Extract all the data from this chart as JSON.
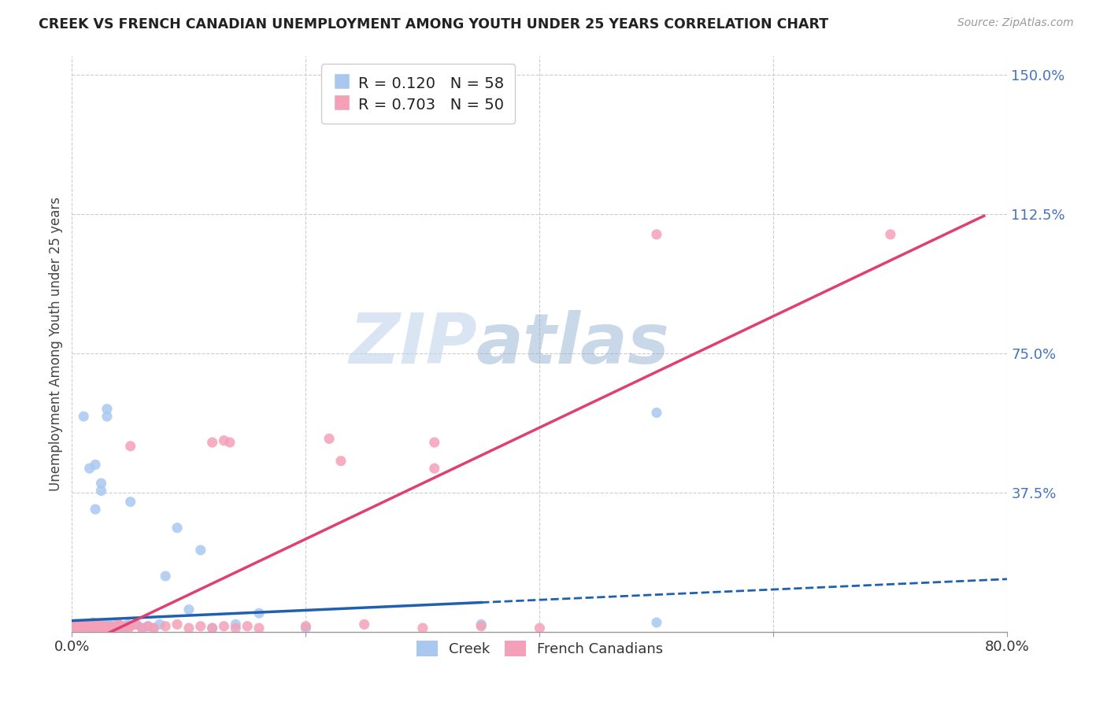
{
  "title": "CREEK VS FRENCH CANADIAN UNEMPLOYMENT AMONG YOUTH UNDER 25 YEARS CORRELATION CHART",
  "source": "Source: ZipAtlas.com",
  "ylabel": "Unemployment Among Youth under 25 years",
  "xlim": [
    0.0,
    0.8
  ],
  "ylim": [
    0.0,
    1.55
  ],
  "creek_color": "#a8c8f0",
  "french_color": "#f4a0b8",
  "creek_line_color": "#2060b0",
  "french_line_color": "#e04070",
  "creek_R": 0.12,
  "creek_N": 58,
  "french_R": 0.703,
  "french_N": 50,
  "ytick_color": "#4472c4",
  "yticks": [
    0.0,
    0.375,
    0.75,
    1.125,
    1.5
  ],
  "yticklabels": [
    "",
    "37.5%",
    "75.0%",
    "112.5%",
    "150.0%"
  ],
  "creek_scatter_x": [
    0.002,
    0.004,
    0.005,
    0.006,
    0.007,
    0.008,
    0.009,
    0.01,
    0.01,
    0.01,
    0.012,
    0.012,
    0.013,
    0.014,
    0.015,
    0.015,
    0.016,
    0.017,
    0.018,
    0.018,
    0.02,
    0.02,
    0.021,
    0.022,
    0.023,
    0.024,
    0.025,
    0.026,
    0.027,
    0.028,
    0.03,
    0.031,
    0.032,
    0.033,
    0.035,
    0.036,
    0.038,
    0.04,
    0.04,
    0.042,
    0.045,
    0.048,
    0.05,
    0.055,
    0.06,
    0.065,
    0.07,
    0.075,
    0.08,
    0.09,
    0.1,
    0.11,
    0.12,
    0.14,
    0.16,
    0.2,
    0.35,
    0.5
  ],
  "creek_scatter_y": [
    0.01,
    0.02,
    0.01,
    0.015,
    0.01,
    0.015,
    0.01,
    0.02,
    0.01,
    0.015,
    0.01,
    0.02,
    0.01,
    0.015,
    0.01,
    0.015,
    0.01,
    0.02,
    0.01,
    0.025,
    0.01,
    0.02,
    0.01,
    0.015,
    0.01,
    0.02,
    0.015,
    0.01,
    0.015,
    0.02,
    0.01,
    0.02,
    0.01,
    0.015,
    0.01,
    0.02,
    0.01,
    0.02,
    0.01,
    0.015,
    0.01,
    0.02,
    0.015,
    0.02,
    0.01,
    0.015,
    0.01,
    0.02,
    0.15,
    0.28,
    0.06,
    0.22,
    0.01,
    0.02,
    0.05,
    0.01,
    0.02,
    0.025
  ],
  "creek_outlier_x": [
    0.01,
    0.015,
    0.02,
    0.02,
    0.025,
    0.025,
    0.03,
    0.03,
    0.05,
    0.5
  ],
  "creek_outlier_y": [
    0.58,
    0.44,
    0.33,
    0.45,
    0.38,
    0.4,
    0.58,
    0.6,
    0.35,
    0.59
  ],
  "french_scatter_x": [
    0.002,
    0.004,
    0.005,
    0.006,
    0.007,
    0.008,
    0.009,
    0.01,
    0.01,
    0.012,
    0.013,
    0.014,
    0.015,
    0.016,
    0.017,
    0.018,
    0.02,
    0.021,
    0.022,
    0.023,
    0.025,
    0.027,
    0.03,
    0.032,
    0.035,
    0.038,
    0.04,
    0.042,
    0.045,
    0.048,
    0.05,
    0.055,
    0.06,
    0.065,
    0.07,
    0.08,
    0.09,
    0.1,
    0.11,
    0.12,
    0.13,
    0.14,
    0.15,
    0.16,
    0.2,
    0.25,
    0.3,
    0.35,
    0.4,
    0.7
  ],
  "french_scatter_y": [
    0.01,
    0.02,
    0.01,
    0.015,
    0.01,
    0.015,
    0.02,
    0.01,
    0.015,
    0.01,
    0.015,
    0.01,
    0.02,
    0.01,
    0.015,
    0.01,
    0.015,
    0.02,
    0.01,
    0.015,
    0.01,
    0.015,
    0.01,
    0.015,
    0.01,
    0.015,
    0.02,
    0.01,
    0.015,
    0.01,
    0.015,
    0.02,
    0.01,
    0.015,
    0.01,
    0.015,
    0.02,
    0.01,
    0.015,
    0.01,
    0.015,
    0.01,
    0.015,
    0.01,
    0.015,
    0.02,
    0.01,
    0.015,
    0.01,
    1.07
  ],
  "french_outlier_x": [
    0.05,
    0.12,
    0.13,
    0.135,
    0.22,
    0.23,
    0.31,
    0.31,
    0.5
  ],
  "french_outlier_y": [
    0.5,
    0.51,
    0.515,
    0.51,
    0.52,
    0.46,
    0.51,
    0.44,
    1.07
  ],
  "creek_line_x_solid_end": 0.35,
  "creek_line_x_dash_end": 0.8,
  "french_line_x_end": 0.78,
  "background_color": "#ffffff",
  "grid_color": "#cccccc"
}
